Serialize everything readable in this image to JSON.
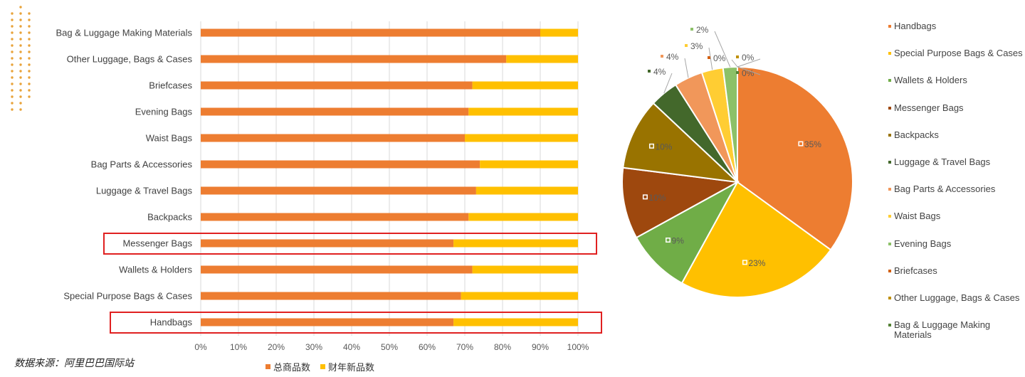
{
  "source_note": "数据来源：阿里巴巴国际站",
  "colors": {
    "total_items": "#ED7D31",
    "new_items": "#FFC000",
    "highlight_box": "#E02020",
    "grid": "#D9D9D9",
    "pie_colors": [
      "#ED7D31",
      "#FFC000",
      "#70AD47",
      "#9E480E",
      "#997300",
      "#43682B",
      "#F1975A",
      "#FFCD33",
      "#8CC168",
      "#D26012",
      "#BF9000",
      "#548235"
    ]
  },
  "chart_data": [
    {
      "type": "bar",
      "orientation": "horizontal",
      "stacked": "percent",
      "categories": [
        "Bag & Luggage Making Materials",
        "Other Luggage, Bags & Cases",
        "Briefcases",
        "Evening Bags",
        "Waist Bags",
        "Bag Parts & Accessories",
        "Luggage & Travel Bags",
        "Backpacks",
        "Messenger Bags",
        "Wallets & Holders",
        "Special Purpose Bags & Cases",
        "Handbags"
      ],
      "series": [
        {
          "name": "总商品数",
          "values": [
            90,
            81,
            72,
            71,
            70,
            74,
            73,
            71,
            67,
            72,
            69,
            67
          ]
        },
        {
          "name": "财年新品数",
          "values": [
            10,
            19,
            28,
            29,
            30,
            26,
            27,
            29,
            33,
            28,
            31,
            33
          ]
        }
      ],
      "x_ticks": [
        "0%",
        "10%",
        "20%",
        "30%",
        "40%",
        "50%",
        "60%",
        "70%",
        "80%",
        "90%",
        "100%"
      ],
      "xlim": [
        0,
        100
      ],
      "highlighted": [
        "Messenger Bags",
        "Handbags"
      ],
      "grid": "vertical",
      "legend": "bottom"
    },
    {
      "type": "pie",
      "categories": [
        "Handbags",
        "Special Purpose Bags & Cases",
        "Wallets & Holders",
        "Messenger Bags",
        "Backpacks",
        "Luggage & Travel Bags",
        "Bag Parts & Accessories",
        "Waist Bags",
        "Evening Bags",
        "Briefcases",
        "Other Luggage, Bags & Cases",
        "Bag & Luggage Making Materials"
      ],
      "values": [
        35,
        23,
        9,
        10,
        10,
        4,
        4,
        3,
        2,
        0,
        0,
        0
      ],
      "labels": [
        "35%",
        "23%",
        "9%",
        "10%",
        "10%",
        "4%",
        "4%",
        "3%",
        "2%",
        "0%",
        "0%",
        "0%"
      ],
      "legend": "right"
    }
  ]
}
